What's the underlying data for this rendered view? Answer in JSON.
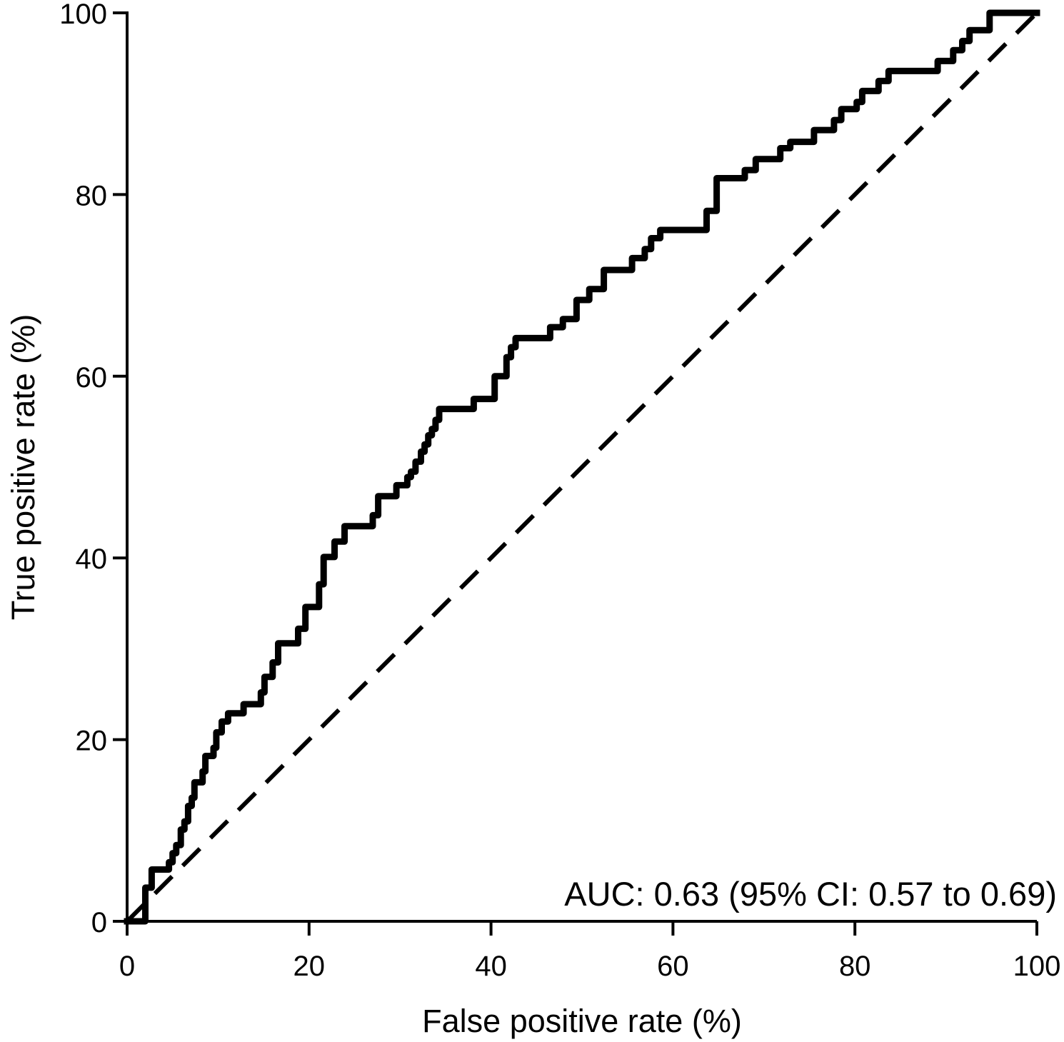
{
  "figure": {
    "background": "#ffffff",
    "line_color": "#000000"
  },
  "chart_data": {
    "type": "line",
    "subtype": "roc-step-curve",
    "title": "",
    "xlabel": "False positive rate (%)",
    "ylabel": "True positive rate (%)",
    "xlim": [
      0,
      100
    ],
    "ylim": [
      0,
      100
    ],
    "x_ticks": [
      0,
      20,
      40,
      60,
      80,
      100
    ],
    "y_ticks": [
      0,
      20,
      40,
      60,
      80,
      100
    ],
    "grid": false,
    "legend": "none",
    "annotation": {
      "text": "AUC: 0.63 (95% CI: 0.57 to 0.69)",
      "auc": 0.63,
      "ci_95_low": 0.57,
      "ci_95_high": 0.69,
      "position": "bottom-right"
    },
    "series": [
      {
        "name": "ROC curve",
        "draw": "step",
        "color": "#000000",
        "stroke_width": 9,
        "dash": "none",
        "points": [
          [
            0,
            0
          ],
          [
            2,
            0
          ],
          [
            2,
            3.7
          ],
          [
            2.7,
            3.7
          ],
          [
            2.7,
            5.7
          ],
          [
            4.6,
            5.7
          ],
          [
            4.6,
            6.5
          ],
          [
            5,
            6.5
          ],
          [
            5,
            7.5
          ],
          [
            5.4,
            7.5
          ],
          [
            5.4,
            8.4
          ],
          [
            5.9,
            8.4
          ],
          [
            5.9,
            10.1
          ],
          [
            6.3,
            10.1
          ],
          [
            6.3,
            11
          ],
          [
            6.7,
            11
          ],
          [
            6.7,
            12.7
          ],
          [
            7.1,
            12.7
          ],
          [
            7.1,
            13.6
          ],
          [
            7.4,
            13.6
          ],
          [
            7.4,
            15.3
          ],
          [
            8.3,
            15.3
          ],
          [
            8.3,
            16.5
          ],
          [
            8.6,
            16.5
          ],
          [
            8.6,
            18.2
          ],
          [
            9.5,
            18.2
          ],
          [
            9.5,
            19.1
          ],
          [
            9.8,
            19.1
          ],
          [
            9.8,
            20.8
          ],
          [
            10.4,
            20.8
          ],
          [
            10.4,
            22
          ],
          [
            11.1,
            22
          ],
          [
            11.1,
            22.9
          ],
          [
            12.8,
            22.9
          ],
          [
            12.8,
            23.9
          ],
          [
            14.7,
            23.9
          ],
          [
            14.7,
            25.2
          ],
          [
            15.1,
            25.2
          ],
          [
            15.1,
            26.9
          ],
          [
            16,
            26.9
          ],
          [
            16,
            28.5
          ],
          [
            16.6,
            28.5
          ],
          [
            16.6,
            30.6
          ],
          [
            18.8,
            30.6
          ],
          [
            18.8,
            32.2
          ],
          [
            19.6,
            32.2
          ],
          [
            19.6,
            34.6
          ],
          [
            21.1,
            34.6
          ],
          [
            21.1,
            37.1
          ],
          [
            21.6,
            37.1
          ],
          [
            21.6,
            40.1
          ],
          [
            22.8,
            40.1
          ],
          [
            22.8,
            41.8
          ],
          [
            23.9,
            41.8
          ],
          [
            23.9,
            43.5
          ],
          [
            27,
            43.5
          ],
          [
            27,
            44.7
          ],
          [
            27.6,
            44.7
          ],
          [
            27.6,
            46.8
          ],
          [
            29.6,
            46.8
          ],
          [
            29.6,
            48
          ],
          [
            30.8,
            48
          ],
          [
            30.8,
            48.9
          ],
          [
            31.2,
            48.9
          ],
          [
            31.2,
            49.5
          ],
          [
            31.7,
            49.5
          ],
          [
            31.7,
            50.6
          ],
          [
            32.3,
            50.6
          ],
          [
            32.3,
            51.7
          ],
          [
            32.7,
            51.7
          ],
          [
            32.7,
            52.5
          ],
          [
            33.1,
            52.5
          ],
          [
            33.1,
            53.5
          ],
          [
            33.5,
            53.5
          ],
          [
            33.5,
            54.2
          ],
          [
            33.9,
            54.2
          ],
          [
            33.9,
            55.2
          ],
          [
            34.3,
            55.2
          ],
          [
            34.3,
            56.4
          ],
          [
            38.1,
            56.4
          ],
          [
            38.1,
            57.5
          ],
          [
            40.4,
            57.5
          ],
          [
            40.4,
            60
          ],
          [
            41.7,
            60
          ],
          [
            41.7,
            62.1
          ],
          [
            42.2,
            62.1
          ],
          [
            42.2,
            63.2
          ],
          [
            42.7,
            63.2
          ],
          [
            42.7,
            64.2
          ],
          [
            46.5,
            64.2
          ],
          [
            46.5,
            65.4
          ],
          [
            47.9,
            65.4
          ],
          [
            47.9,
            66.3
          ],
          [
            49.4,
            66.3
          ],
          [
            49.4,
            68.4
          ],
          [
            50.8,
            68.4
          ],
          [
            50.8,
            69.6
          ],
          [
            52.4,
            69.6
          ],
          [
            52.4,
            71.7
          ],
          [
            55.5,
            71.7
          ],
          [
            55.5,
            73
          ],
          [
            56.9,
            73
          ],
          [
            56.9,
            74
          ],
          [
            57.6,
            74
          ],
          [
            57.6,
            75.2
          ],
          [
            58.6,
            75.2
          ],
          [
            58.6,
            76.1
          ],
          [
            63.7,
            76.1
          ],
          [
            63.7,
            78.2
          ],
          [
            64.8,
            78.2
          ],
          [
            64.8,
            81.8
          ],
          [
            67.9,
            81.8
          ],
          [
            67.9,
            82.7
          ],
          [
            69.1,
            82.7
          ],
          [
            69.1,
            83.9
          ],
          [
            71.8,
            83.9
          ],
          [
            71.8,
            85.1
          ],
          [
            72.9,
            85.1
          ],
          [
            72.9,
            85.8
          ],
          [
            75.5,
            85.8
          ],
          [
            75.5,
            87.1
          ],
          [
            77.7,
            87.1
          ],
          [
            77.7,
            88.2
          ],
          [
            78.5,
            88.2
          ],
          [
            78.5,
            89.4
          ],
          [
            80.2,
            89.4
          ],
          [
            80.2,
            90.2
          ],
          [
            80.8,
            90.2
          ],
          [
            80.8,
            91.4
          ],
          [
            82.6,
            91.4
          ],
          [
            82.6,
            92.5
          ],
          [
            83.7,
            92.5
          ],
          [
            83.7,
            93.6
          ],
          [
            89.1,
            93.6
          ],
          [
            89.1,
            94.7
          ],
          [
            90.8,
            94.7
          ],
          [
            90.8,
            95.9
          ],
          [
            91.8,
            95.9
          ],
          [
            91.8,
            96.9
          ],
          [
            92.6,
            96.9
          ],
          [
            92.6,
            98.1
          ],
          [
            94.8,
            98.1
          ],
          [
            94.8,
            100
          ],
          [
            100,
            100
          ]
        ]
      },
      {
        "name": "chance reference diagonal",
        "draw": "line",
        "color": "#000000",
        "stroke_width": 6,
        "dash": "dashed",
        "points": [
          [
            0,
            0
          ],
          [
            100,
            100
          ]
        ]
      }
    ]
  }
}
